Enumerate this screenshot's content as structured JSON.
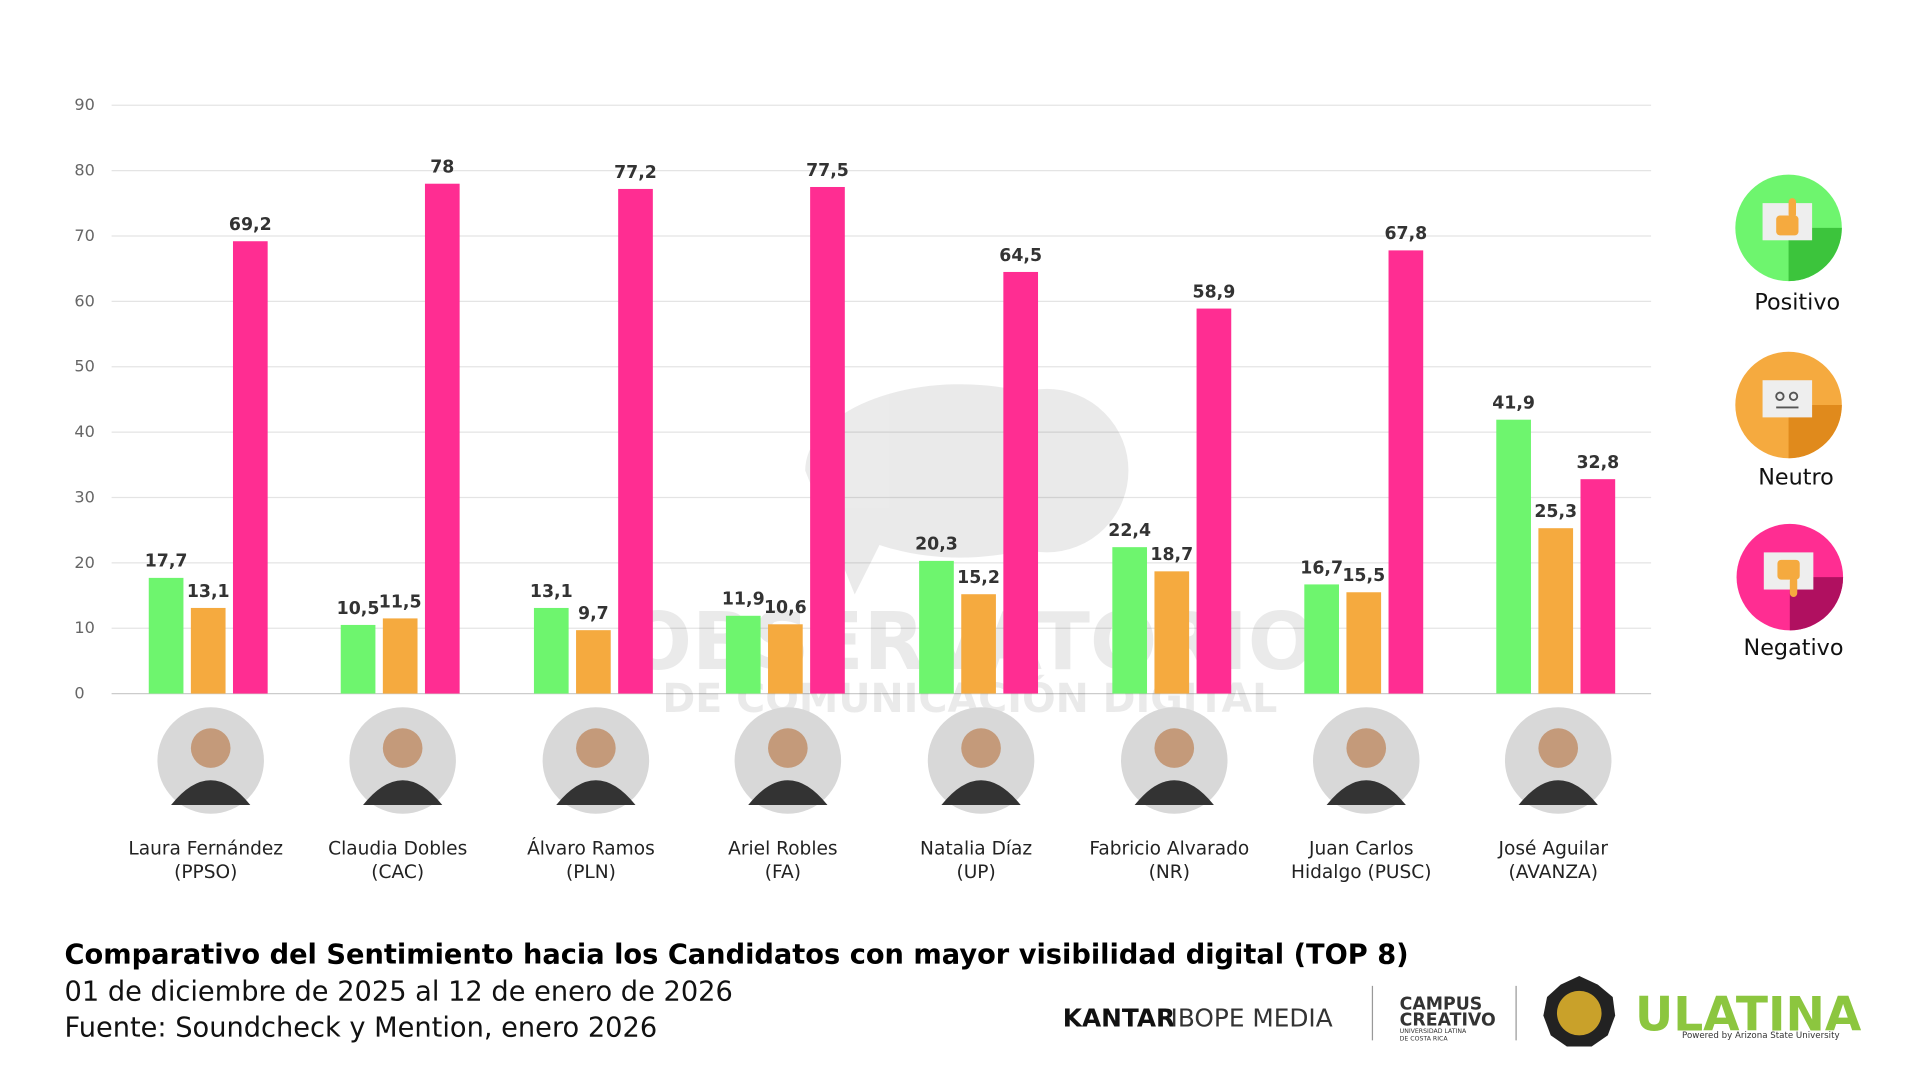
{
  "chart_data": {
    "type": "bar",
    "title": "Comparativo del Sentimiento hacia los Candidatos con mayor visibilidad digital (TOP 8)",
    "subtitle": "01 de diciembre de 2025 al 12 de enero de 2026",
    "source": "Fuente: Soundcheck y Mention, enero 2026",
    "categories": [
      [
        "Laura Fernández",
        "(PPSO)"
      ],
      [
        "Claudia Dobles",
        "(CAC)"
      ],
      [
        "Álvaro Ramos",
        "(PLN)"
      ],
      [
        "Ariel Robles",
        "(FA)"
      ],
      [
        "Natalia Díaz",
        "(UP)"
      ],
      [
        "Fabricio Alvarado",
        "(NR)"
      ],
      [
        "Juan Carlos",
        "Hidalgo (PUSC)"
      ],
      [
        "José Aguilar",
        "(AVANZA)"
      ]
    ],
    "series": [
      {
        "name": "Positivo",
        "color": "#6ef56e",
        "labels": [
          "17,7",
          "10,5",
          "13,1",
          "11,9",
          "20,3",
          "22,4",
          "16,7",
          "41,9"
        ],
        "values": [
          17.7,
          10.5,
          13.1,
          11.9,
          20.3,
          22.4,
          16.7,
          41.9
        ]
      },
      {
        "name": "Neutro",
        "color": "#f5aa3f",
        "labels": [
          "13,1",
          "11,5",
          "9,7",
          "10,6",
          "15,2",
          "18,7",
          "15,5",
          "25,3"
        ],
        "values": [
          13.1,
          11.5,
          9.7,
          10.6,
          15.2,
          18.7,
          15.5,
          25.3
        ]
      },
      {
        "name": "Negativo",
        "color": "#ff2d92",
        "labels": [
          "69,2",
          "78",
          "77,2",
          "77,5",
          "64,5",
          "58,9",
          "67,8",
          "32,8"
        ],
        "values": [
          69.2,
          78,
          77.2,
          77.5,
          64.5,
          58.9,
          67.8,
          32.8
        ]
      }
    ],
    "ylim": [
      0,
      90
    ],
    "yticks": [
      "0",
      "10",
      "20",
      "30",
      "40",
      "50",
      "60",
      "70",
      "80",
      "90"
    ],
    "grid": true,
    "legend": "right",
    "legend_icons": [
      "thumbs-up-icon",
      "neutral-face-icon",
      "thumbs-down-icon"
    ]
  },
  "watermark": [
    "OBSERVATORIO",
    "DE COMUNICACIÓN DIGITAL"
  ],
  "logos": {
    "kantar": [
      "KANTAR",
      "IBOPE MEDIA"
    ],
    "campus": [
      "CAMPUS",
      "CREATIVO",
      "UNIVERSIDAD LATINA",
      "DE COSTA RICA"
    ],
    "ulatina": [
      "ULATINA",
      "Powered by Arizona State University"
    ]
  }
}
